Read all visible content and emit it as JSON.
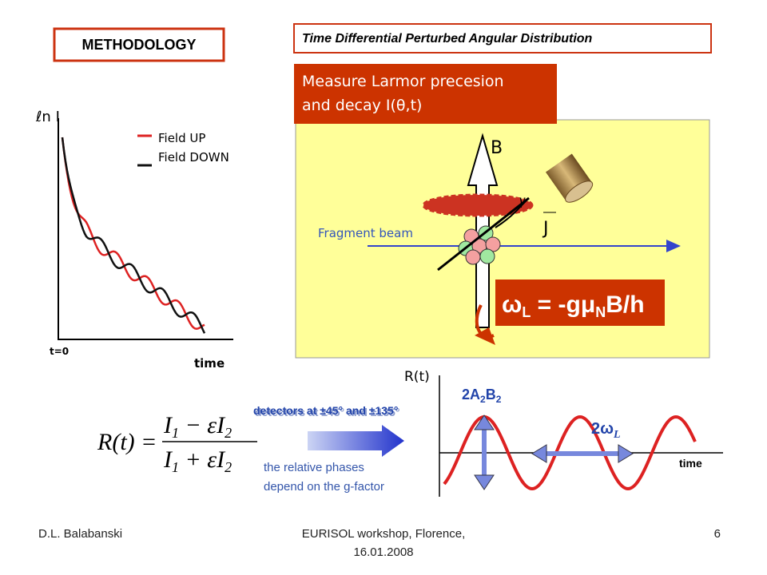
{
  "methodology": "METHODOLOGY",
  "title": "Time Differential Perturbed Angular Distribution",
  "measure": {
    "line1": "Measure Larmor precesion",
    "line2": "and decay  I(θ,t)"
  },
  "left_plot": {
    "ylabel": "ℓn I",
    "legend": [
      "Field UP",
      "Field DOWN"
    ],
    "t0": "t=0",
    "xlabel": "time"
  },
  "diagram": {
    "B": "B",
    "gamma": "γ",
    "J": "J",
    "beam": "Fragment beam",
    "larmor": [
      "ω",
      "L",
      " = -g",
      "μ",
      "N",
      "B/h"
    ]
  },
  "formula": {
    "lhs": "R(t) =",
    "numerator": [
      "I",
      "1",
      " − ε",
      "I",
      "2"
    ],
    "denominator": [
      "I",
      "1",
      " + ε",
      "I",
      "2"
    ]
  },
  "detectors": "detectors at ±45° and ±135°",
  "phases": [
    "the relative phases",
    "depend on the g-factor"
  ],
  "r_plot": {
    "ylabel": "R(t)",
    "amplitude": [
      "2A",
      "2",
      "B",
      "2"
    ],
    "period": [
      "2ω",
      "L"
    ],
    "xlabel": "time"
  },
  "footer": {
    "author": "D.L. Balabanski",
    "event": [
      "EURISOL workshop, Florence,",
      "16.01.2008"
    ],
    "page": "6"
  }
}
